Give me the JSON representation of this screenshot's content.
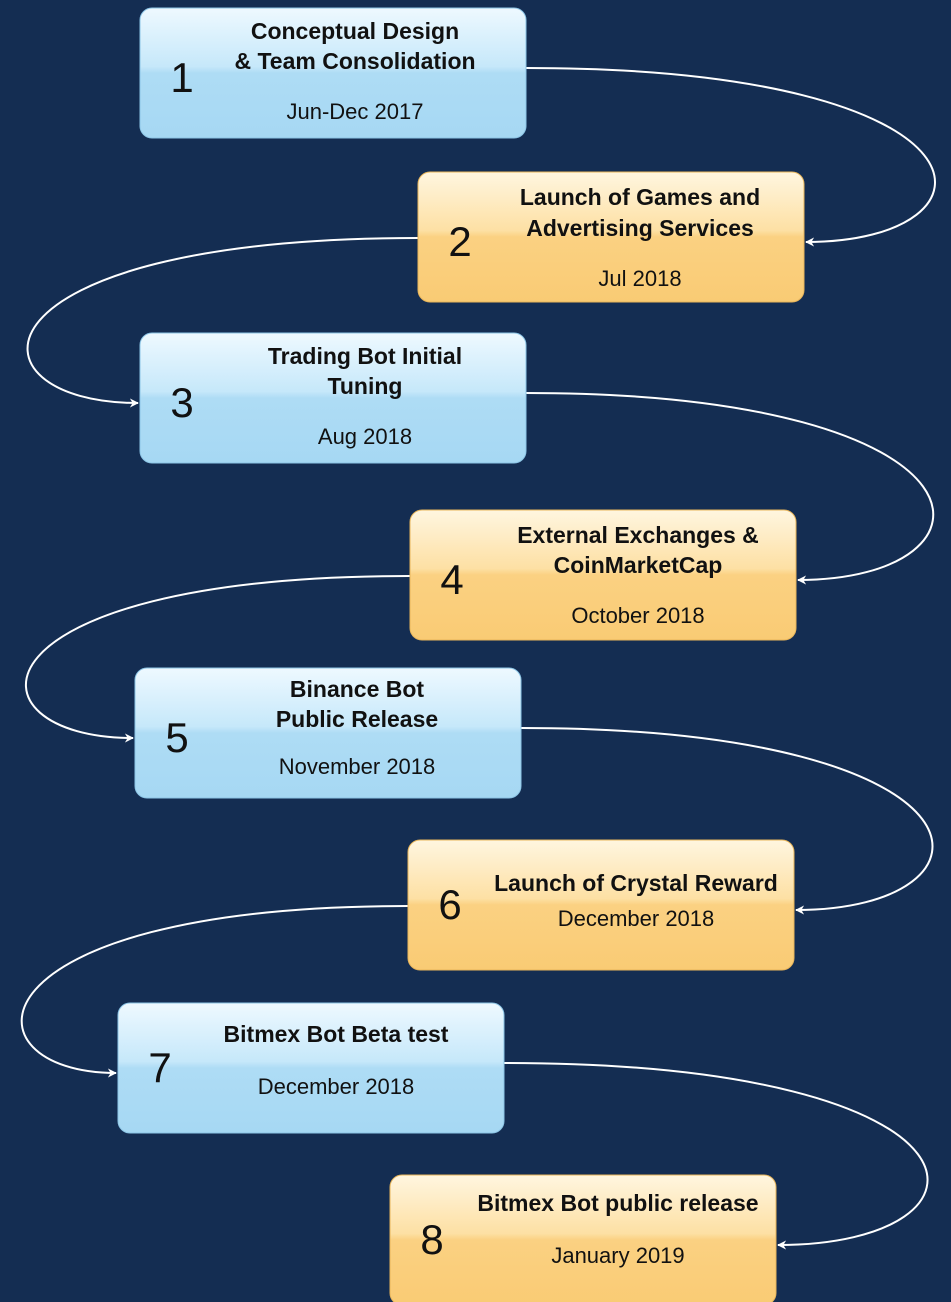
{
  "nodes": [
    {
      "number": 1,
      "title_lines": [
        "Conceptual Design",
        "& Team Consolidation"
      ],
      "date": "Jun-Dec 2017"
    },
    {
      "number": 2,
      "title_lines": [
        "Launch of Games and",
        "Advertising Services"
      ],
      "date": "Jul 2018"
    },
    {
      "number": 3,
      "title_lines": [
        "Trading Bot Initial",
        "Tuning"
      ],
      "date": "Aug 2018"
    },
    {
      "number": 4,
      "title_lines": [
        "External Exchanges &",
        "CoinMarketCap"
      ],
      "date": "October 2018"
    },
    {
      "number": 5,
      "title_lines": [
        "Binance Bot",
        "Public Release"
      ],
      "date": "November 2018"
    },
    {
      "number": 6,
      "title_lines": [
        "Launch of Crystal Reward"
      ],
      "date": "December 2018"
    },
    {
      "number": 7,
      "title_lines": [
        "Bitmex Bot Beta test"
      ],
      "date": "December 2018"
    },
    {
      "number": 8,
      "title_lines": [
        "Bitmex Bot public release"
      ],
      "date": "January 2019"
    }
  ]
}
